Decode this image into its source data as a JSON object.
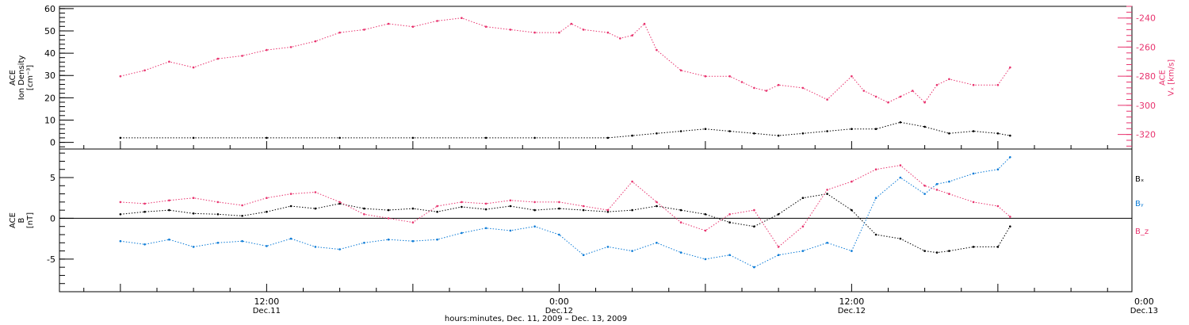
{
  "colors": {
    "black": "#000000",
    "red": "#e8336e",
    "blue": "#0a7ad6",
    "frame": "#000000"
  },
  "chart_data": [
    {
      "type": "scatter",
      "panel": "top",
      "left_axis": {
        "title_lines": [
          "ACE",
          "Ion Density",
          "[cm⁻³]"
        ],
        "ylim": [
          -3,
          61
        ],
        "ticks": [
          0,
          10,
          20,
          30,
          40,
          50,
          60
        ],
        "tick_labels": [
          "0",
          "10",
          "20",
          "30",
          "40",
          "50",
          "60"
        ]
      },
      "right_axis": {
        "title_lines": [
          "ACE",
          "Vₓ [km/s]"
        ],
        "ylim": [
          -330,
          -232
        ],
        "ticks": [
          -320,
          -300,
          -280,
          -260,
          -240
        ],
        "tick_labels": [
          "-320",
          "-300",
          "-280",
          "-260",
          "-240"
        ],
        "color": "#e8336e"
      },
      "series": [
        {
          "axis": "left",
          "color": "#000000",
          "x": [
            0,
            6,
            12,
            18,
            24,
            30,
            34,
            40,
            42,
            44,
            46,
            48,
            50,
            52,
            54,
            56,
            58,
            60,
            62,
            64,
            66,
            68,
            70,
            72,
            73
          ],
          "y": [
            2,
            2,
            2,
            2,
            2,
            2,
            2,
            2,
            3,
            4,
            5,
            6,
            5,
            4,
            3,
            4,
            5,
            6,
            6,
            9,
            7,
            4,
            5,
            4,
            3
          ]
        },
        {
          "axis": "right",
          "color": "#e8336e",
          "x": [
            0,
            2,
            4,
            6,
            8,
            10,
            12,
            14,
            16,
            18,
            20,
            22,
            24,
            26,
            28,
            30,
            32,
            34,
            36,
            37,
            38,
            40,
            41,
            42,
            43,
            44,
            46,
            48,
            50,
            51,
            52,
            53,
            54,
            56,
            58,
            60,
            61,
            62,
            63,
            64,
            65,
            66,
            67,
            68,
            70,
            72,
            73
          ],
          "y": [
            -280,
            -276,
            -270,
            -274,
            -268,
            -266,
            -262,
            -260,
            -256,
            -250,
            -248,
            -244,
            -246,
            -242,
            -240,
            -246,
            -248,
            -250,
            -250,
            -244,
            -248,
            -250,
            -254,
            -252,
            -244,
            -262,
            -276,
            -280,
            -280,
            -284,
            -288,
            -290,
            -286,
            -288,
            -296,
            -280,
            -290,
            -294,
            -298,
            -294,
            -290,
            -298,
            -286,
            -282,
            -286,
            -286,
            -274
          ]
        }
      ]
    },
    {
      "type": "scatter",
      "panel": "bottom",
      "axis": {
        "title_lines": [
          "ACE",
          "B",
          "[nT]"
        ],
        "ylim": [
          -9,
          8.5
        ],
        "ticks": [
          -5,
          0,
          5
        ],
        "tick_labels": [
          "-5",
          "0",
          "5"
        ]
      },
      "zero_line": true,
      "legend": [
        "Bₓ",
        "Bᵧ",
        "B_z"
      ],
      "series": [
        {
          "name": "Bₓ",
          "color": "#000000",
          "x": [
            0,
            2,
            4,
            6,
            8,
            10,
            12,
            14,
            16,
            18,
            20,
            22,
            24,
            26,
            28,
            30,
            32,
            34,
            36,
            38,
            40,
            42,
            44,
            46,
            48,
            50,
            52,
            54,
            56,
            58,
            60,
            62,
            64,
            66,
            67,
            68,
            70,
            72,
            73
          ],
          "y": [
            0.5,
            0.8,
            1,
            0.6,
            0.5,
            0.3,
            0.8,
            1.5,
            1.2,
            1.8,
            1.2,
            1.0,
            1.2,
            0.8,
            1.4,
            1.1,
            1.5,
            1.0,
            1.2,
            1.0,
            0.8,
            1.0,
            1.5,
            1.0,
            0.5,
            -0.5,
            -1.0,
            0.5,
            2.5,
            3.0,
            1.0,
            -2.0,
            -2.5,
            -4.0,
            -4.2,
            -4.0,
            -3.5,
            -3.5,
            -1.0
          ]
        },
        {
          "name": "Bᵧ",
          "color": "#0a7ad6",
          "x": [
            0,
            2,
            4,
            6,
            8,
            10,
            12,
            14,
            16,
            18,
            20,
            22,
            24,
            26,
            28,
            30,
            32,
            34,
            36,
            38,
            40,
            42,
            44,
            46,
            48,
            50,
            52,
            54,
            56,
            58,
            60,
            62,
            64,
            66,
            67,
            68,
            70,
            72,
            73
          ],
          "y": [
            -2.8,
            -3.2,
            -2.6,
            -3.5,
            -3.0,
            -2.8,
            -3.4,
            -2.5,
            -3.5,
            -3.8,
            -3.0,
            -2.6,
            -2.8,
            -2.6,
            -1.8,
            -1.2,
            -1.5,
            -1.0,
            -2.0,
            -4.5,
            -3.5,
            -4.0,
            -3.0,
            -4.2,
            -5.0,
            -4.5,
            -6.0,
            -4.5,
            -4.0,
            -3.0,
            -4.0,
            2.5,
            5.0,
            3.0,
            4.2,
            4.5,
            5.5,
            6.0,
            7.5
          ]
        },
        {
          "name": "B_z",
          "color": "#e8336e",
          "x": [
            0,
            2,
            4,
            6,
            8,
            10,
            12,
            14,
            16,
            18,
            20,
            22,
            24,
            26,
            28,
            30,
            32,
            34,
            36,
            38,
            40,
            42,
            44,
            46,
            48,
            50,
            52,
            54,
            56,
            58,
            60,
            62,
            64,
            66,
            67,
            68,
            70,
            72,
            73
          ],
          "y": [
            2,
            1.8,
            2.2,
            2.5,
            2.0,
            1.6,
            2.5,
            3.0,
            3.2,
            2.0,
            0.5,
            0.0,
            -0.5,
            1.5,
            2.0,
            1.8,
            2.2,
            2.0,
            2.0,
            1.5,
            1.0,
            4.5,
            2.0,
            -0.5,
            -1.5,
            0.5,
            1.0,
            -3.5,
            -1.0,
            3.5,
            4.5,
            6.0,
            6.5,
            4.0,
            3.5,
            3.0,
            2.0,
            1.5,
            0.2
          ]
        }
      ]
    }
  ],
  "x_axis": {
    "xlim": [
      -5,
      83
    ],
    "major_ticks": [
      {
        "x": 12,
        "time": "12:00",
        "date": "Dec.11"
      },
      {
        "x": 36,
        "time": "0:00",
        "date": "Dec.12"
      },
      {
        "x": 60,
        "time": "12:00",
        "date": "Dec.12"
      },
      {
        "x": 84,
        "time": "0:00",
        "date": "Dec.13"
      }
    ],
    "minor_tick_step_hours": 3,
    "label": "hours:minutes, Dec. 11, 2009 – Dec. 13, 2009"
  }
}
